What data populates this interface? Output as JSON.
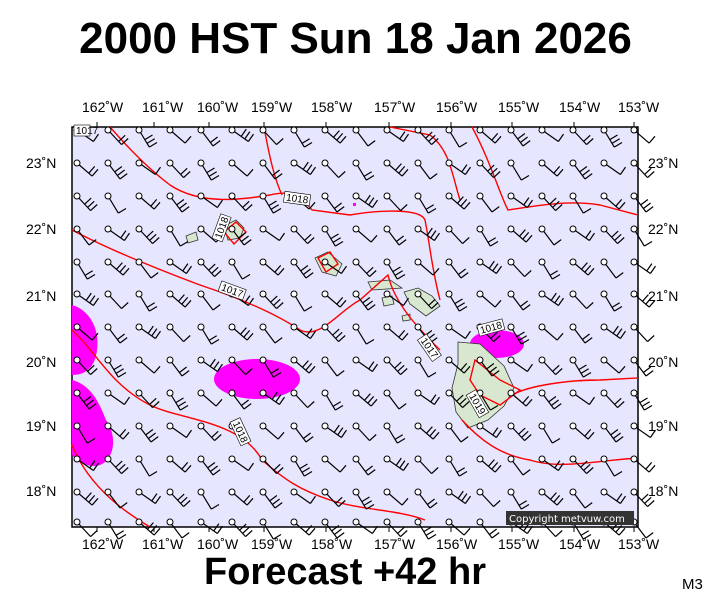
{
  "header": {
    "title": "2000 HST Sun 18 Jan 2026"
  },
  "footer": {
    "forecast": "Forecast +42 hr",
    "model": "M3"
  },
  "map": {
    "copyright": "Copyright metvuw.com",
    "lon_labels": [
      "162˚W",
      "161˚W",
      "160˚W",
      "159˚W",
      "158˚W",
      "157˚W",
      "156˚W",
      "155˚W",
      "154˚W",
      "153˚W"
    ],
    "lat_labels": [
      "23˚N",
      "22˚N",
      "21˚N",
      "20˚N",
      "19˚N",
      "18˚N"
    ],
    "isobar_labels": [
      "1017",
      "1018",
      "1018",
      "1017",
      "1018",
      "1017",
      "1019",
      "1018"
    ],
    "colors": {
      "background": "#e6e6ff",
      "isobar": "#ff0000",
      "rain": "#ff00ff",
      "land": "#d8e8d0"
    }
  }
}
